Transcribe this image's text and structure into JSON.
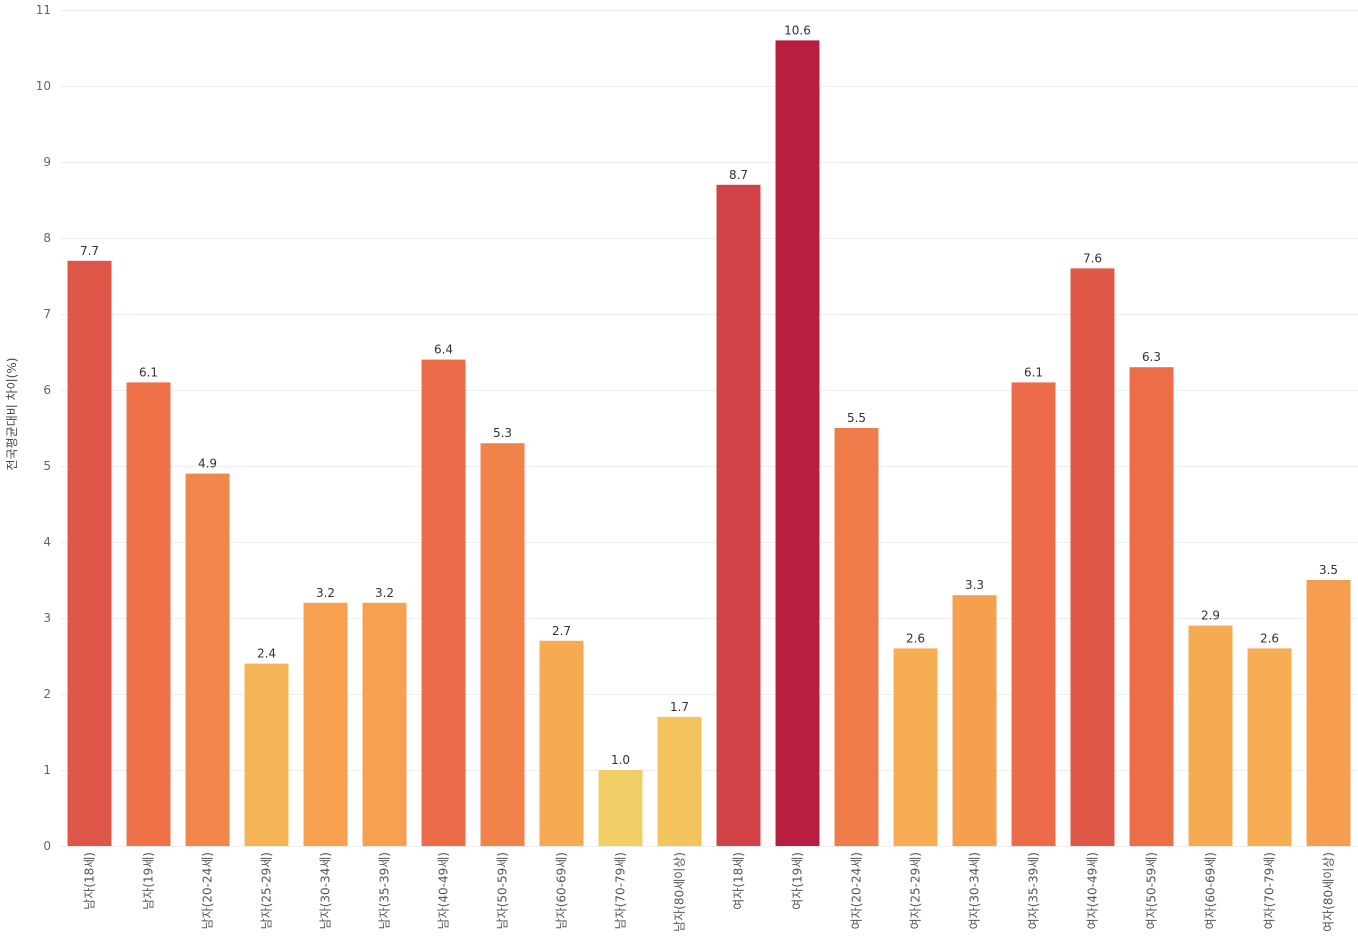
{
  "chart_data": {
    "type": "bar",
    "ylabel": "전국평균대비 차이(%)",
    "ylim": [
      0,
      11
    ],
    "yticks": [
      0,
      1,
      2,
      3,
      4,
      5,
      6,
      7,
      8,
      9,
      10,
      11
    ],
    "grid": true,
    "categories": [
      "남자(18세)",
      "남자(19세)",
      "남자(20-24세)",
      "남자(25-29세)",
      "남자(30-34세)",
      "남자(35-39세)",
      "남자(40-49세)",
      "남자(50-59세)",
      "남자(60-69세)",
      "남자(70-79세)",
      "남자(80세이상)",
      "여자(18세)",
      "여자(19세)",
      "여자(20-24세)",
      "여자(25-29세)",
      "여자(30-34세)",
      "여자(35-39세)",
      "여자(40-49세)",
      "여자(50-59세)",
      "여자(60-69세)",
      "여자(70-79세)",
      "여자(80세이상)"
    ],
    "values": [
      7.7,
      6.1,
      4.9,
      2.4,
      3.2,
      3.2,
      6.4,
      5.3,
      2.7,
      1.0,
      1.7,
      8.7,
      10.6,
      5.5,
      2.6,
      3.3,
      6.1,
      7.6,
      6.3,
      2.9,
      2.6,
      3.5
    ],
    "value_labels": [
      "7.7",
      "6.1",
      "4.9",
      "2.4",
      "3.2",
      "3.2",
      "6.4",
      "5.3",
      "2.7",
      "1.0",
      "1.7",
      "8.7",
      "10.6",
      "5.5",
      "2.6",
      "3.3",
      "6.1",
      "7.6",
      "6.3",
      "2.9",
      "2.6",
      "3.5"
    ],
    "colors": [
      "#dd5647",
      "#ee7148",
      "#f2874b",
      "#f5b557",
      "#f7a04f",
      "#f7a04f",
      "#ec6c49",
      "#f1824a",
      "#f6ab53",
      "#f2cf66",
      "#f3c45e",
      "#d04245",
      "#b71e40",
      "#f07b4b",
      "#f6ad54",
      "#f6a04f",
      "#ec6c49",
      "#df5847",
      "#ec6e49",
      "#f6ab53",
      "#f6ad54",
      "#f79d4f"
    ]
  }
}
